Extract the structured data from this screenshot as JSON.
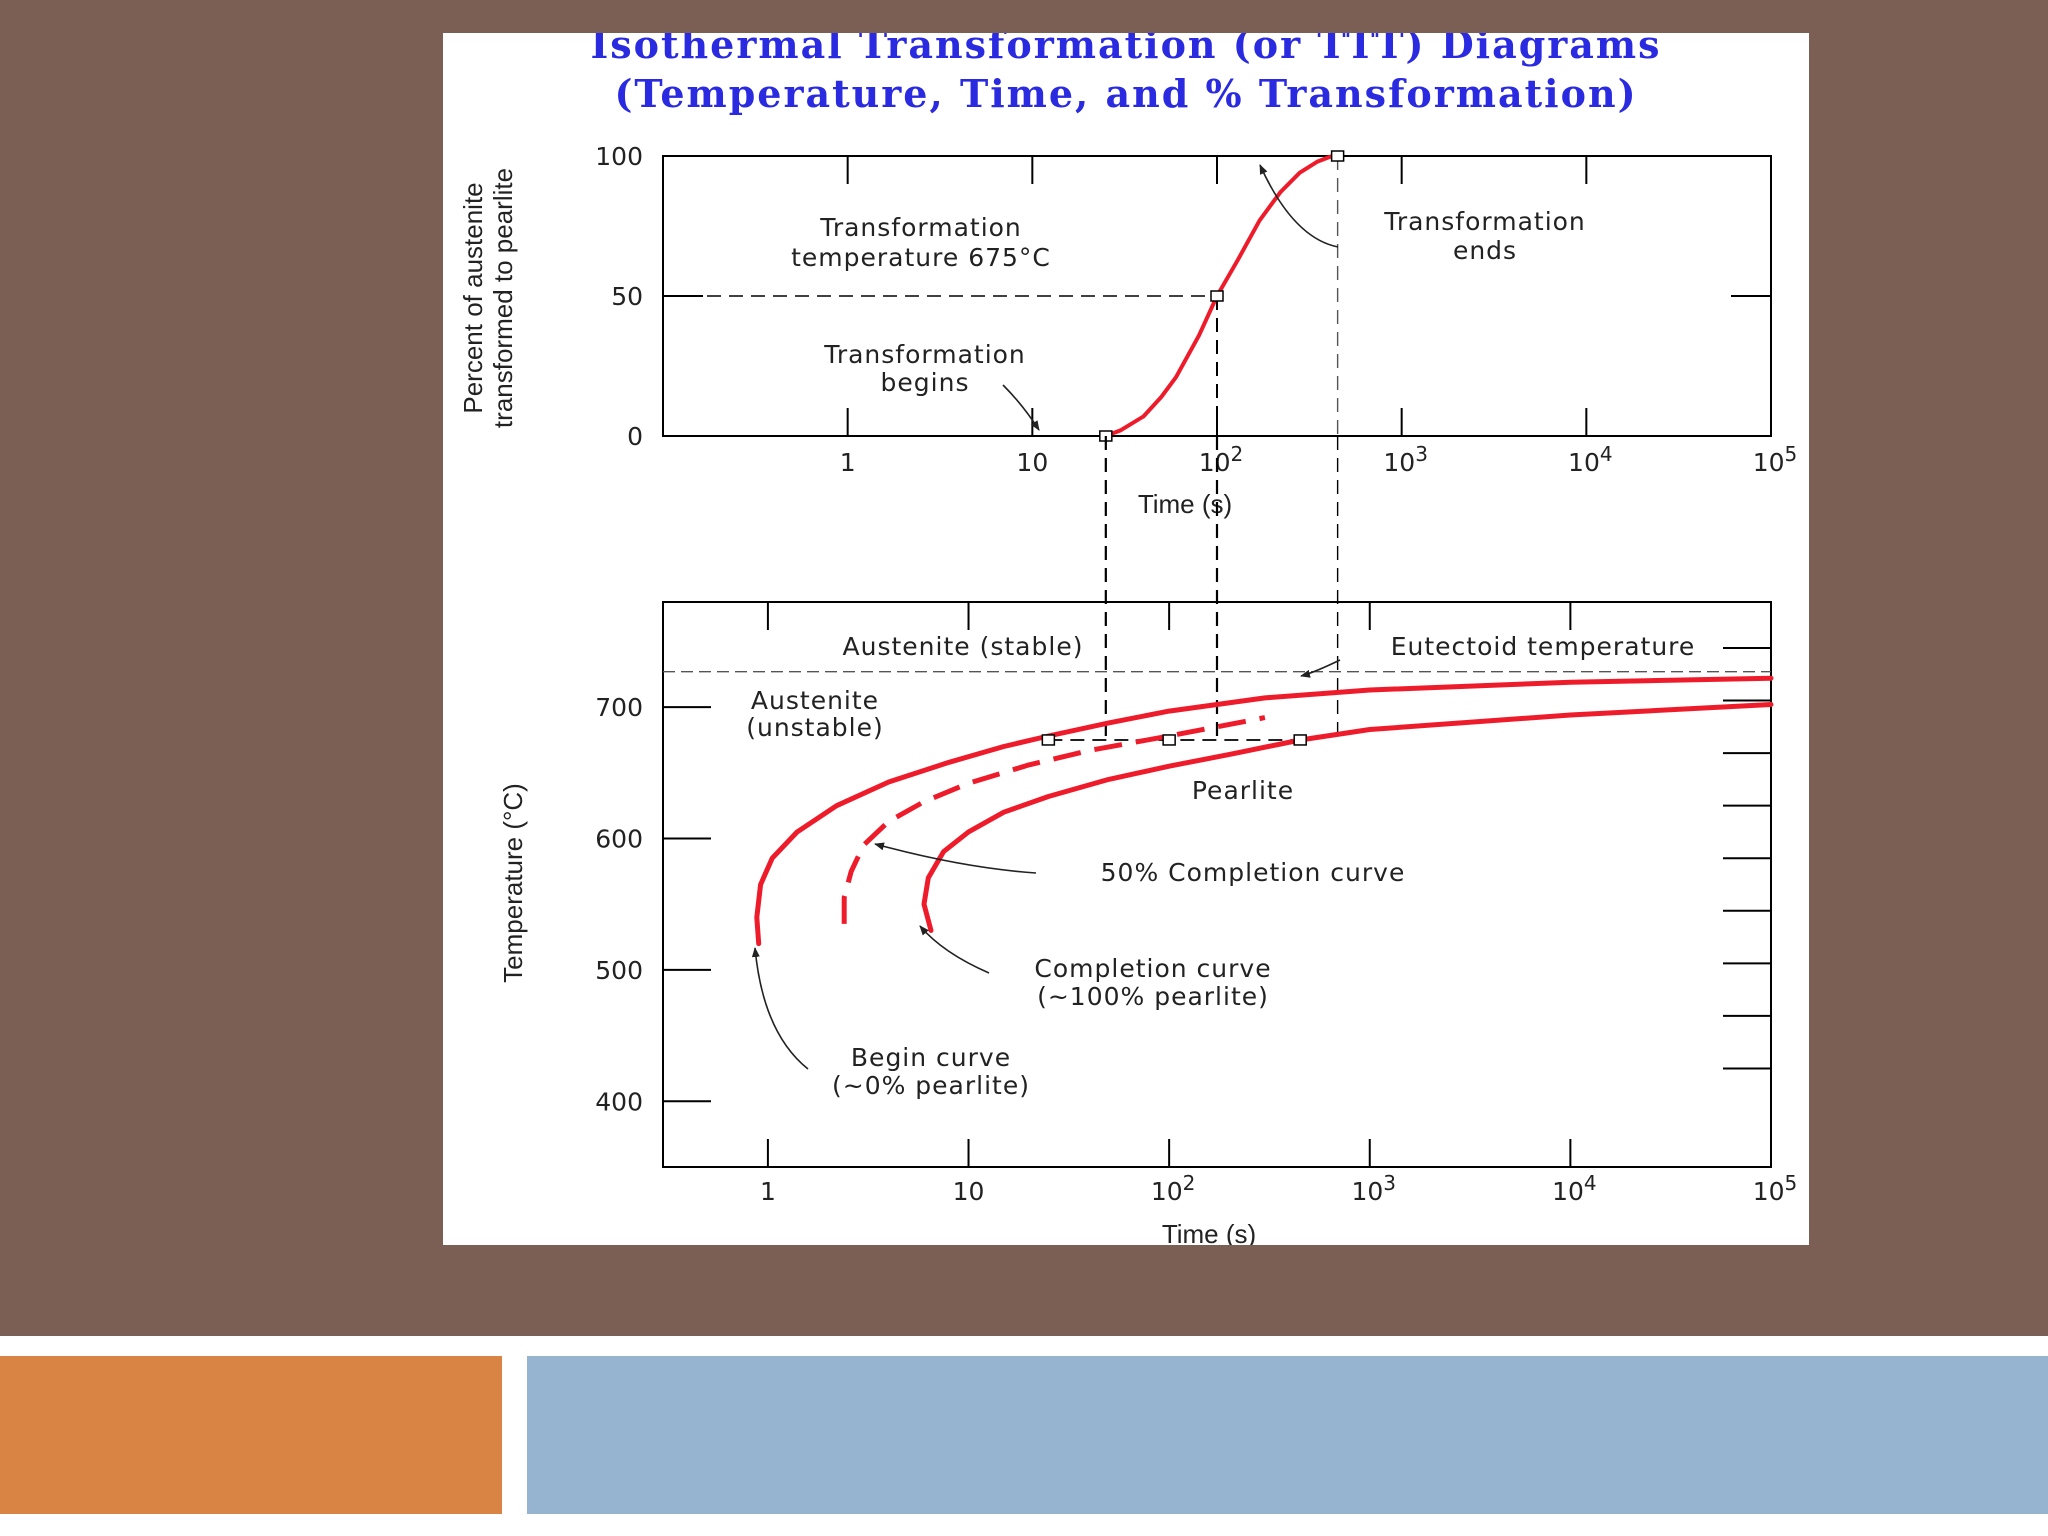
{
  "slide": {
    "colors": {
      "background": "#7b5f54",
      "accent_left": "#d98345",
      "accent_right": "#96b4d0",
      "title": "#2a2ae0",
      "curve": "#ee1c2b"
    }
  },
  "figure": {
    "title_line1": "Isothermal Transformation (or TTT) Diagrams",
    "title_line2": "(Temperature, Time, and % Transformation)"
  },
  "chart_data": [
    {
      "type": "line",
      "xscale": "log",
      "xlim": [
        0.1,
        100000
      ],
      "ylim": [
        0,
        100
      ],
      "xlabel": "Time (s)",
      "ylabel_line1": "Percent of austenite",
      "ylabel_line2": "transformed to pearlite",
      "x_ticks": [
        {
          "value": 1,
          "base": "1",
          "exp": ""
        },
        {
          "value": 10,
          "base": "10",
          "exp": ""
        },
        {
          "value": 100,
          "base": "10",
          "exp": "2"
        },
        {
          "value": 1000,
          "base": "10",
          "exp": "3"
        },
        {
          "value": 10000,
          "base": "10",
          "exp": "4"
        },
        {
          "value": 100000,
          "base": "10",
          "exp": "5"
        }
      ],
      "y_ticks": [
        0,
        50,
        100
      ],
      "series": [
        {
          "x": [
            25,
            30,
            40,
            50,
            60,
            80,
            100,
            130,
            170,
            220,
            280,
            350,
            420,
            450
          ],
          "y": [
            0,
            2,
            7,
            14,
            21,
            36,
            50,
            63,
            77,
            87,
            94,
            98,
            100,
            100
          ]
        }
      ],
      "markers": [
        {
          "x": 25,
          "y": 0
        },
        {
          "x": 100,
          "y": 50
        },
        {
          "x": 450,
          "y": 100
        }
      ],
      "annotations": {
        "transformation_temp_line1": "Transformation",
        "transformation_temp_line2": "temperature 675°C",
        "begins_line1": "Transformation",
        "begins_line2": "begins",
        "ends_line1": "Transformation",
        "ends_line2": "ends"
      }
    },
    {
      "type": "line",
      "xscale": "log",
      "xlim": [
        0.3,
        100000
      ],
      "ylim": [
        350,
        780
      ],
      "xlabel": "Time (s)",
      "ylabel": "Temperature (°C)",
      "x_ticks": [
        {
          "value": 1,
          "base": "1",
          "exp": ""
        },
        {
          "value": 10,
          "base": "10",
          "exp": ""
        },
        {
          "value": 100,
          "base": "10",
          "exp": "2"
        },
        {
          "value": 1000,
          "base": "10",
          "exp": "3"
        },
        {
          "value": 10000,
          "base": "10",
          "exp": "4"
        },
        {
          "value": 100000,
          "base": "10",
          "exp": "5"
        }
      ],
      "y_ticks": [
        400,
        500,
        600,
        700
      ],
      "eutectoid_temperature": 727,
      "isotherm": {
        "temperature": 675,
        "times": [
          25,
          100,
          450
        ]
      },
      "series": [
        {
          "style": "solid",
          "x": [
            0.9,
            0.88,
            0.92,
            1.05,
            1.4,
            2.2,
            4,
            8,
            15,
            25,
            50,
            100,
            300,
            1000,
            10000,
            100000
          ],
          "y": [
            520,
            540,
            565,
            585,
            605,
            625,
            643,
            658,
            670,
            678,
            688,
            697,
            707,
            713,
            719,
            722
          ]
        },
        {
          "style": "dashed",
          "x": [
            2.4,
            2.4,
            2.6,
            3,
            4,
            6,
            10,
            20,
            40,
            100,
            300
          ],
          "y": [
            535,
            555,
            575,
            595,
            613,
            628,
            642,
            656,
            667,
            678,
            692
          ]
        },
        {
          "style": "solid",
          "x": [
            6.5,
            6,
            6.3,
            7.5,
            10,
            15,
            25,
            50,
            100,
            200,
            450,
            1000,
            10000,
            100000
          ],
          "y": [
            530,
            550,
            570,
            590,
            605,
            620,
            632,
            645,
            655,
            664,
            675,
            683,
            694,
            702
          ]
        }
      ],
      "annotations": {
        "austenite_stable": "Austenite (stable)",
        "eutectoid_label": "Eutectoid temperature",
        "austenite_unstable_line1": "Austenite",
        "austenite_unstable_line2": "(unstable)",
        "pearlite": "Pearlite",
        "fifty_percent": "50% Completion curve",
        "completion_line1": "Completion curve",
        "completion_line2": "(~100% pearlite)",
        "begin_line1": "Begin curve",
        "begin_line2": "(~0% pearlite)"
      }
    }
  ]
}
